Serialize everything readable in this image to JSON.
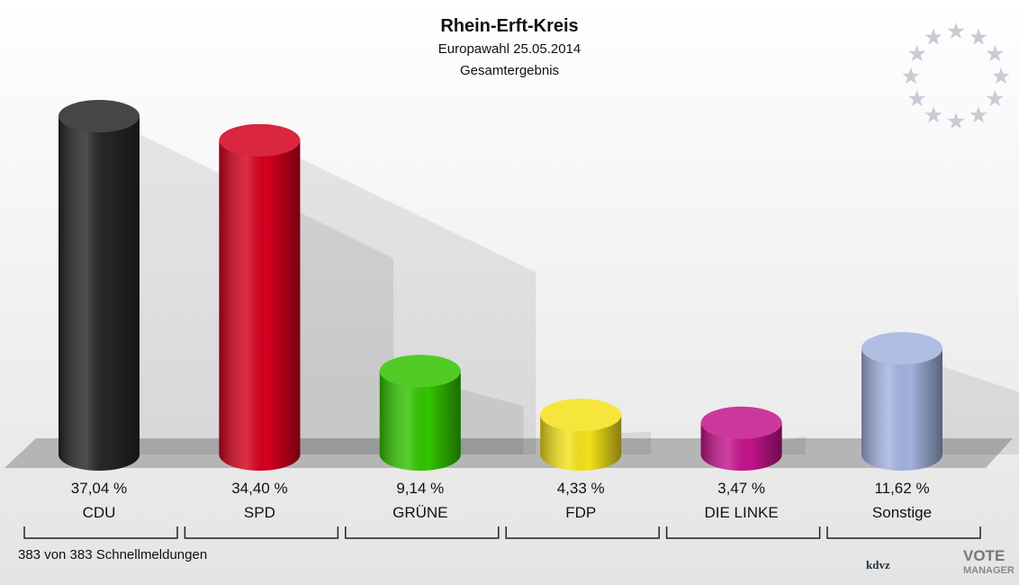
{
  "chart_data": {
    "type": "bar",
    "title": "Rhein-Erft-Kreis",
    "subtitle": "Europawahl 25.05.2014",
    "subtitle2": "Gesamtergebnis",
    "footer": "383 von 383 Schnellmeldungen",
    "logo_texts": [
      "kdvz",
      "VOTE",
      "MANAGER"
    ],
    "categories": [
      "CDU",
      "SPD",
      "GRÜNE",
      "FDP",
      "DIE LINKE",
      "Sonstige"
    ],
    "values": [
      37.04,
      34.4,
      9.14,
      4.33,
      3.47,
      11.62
    ],
    "value_labels": [
      "37,04 %",
      "34,40 %",
      "9,14 %",
      "4,33 %",
      "3,47 %",
      "11,62 %"
    ],
    "colors": [
      "#262626",
      "#d4001e",
      "#33c400",
      "#f5e21a",
      "#c4148c",
      "#a3b3e0"
    ]
  }
}
